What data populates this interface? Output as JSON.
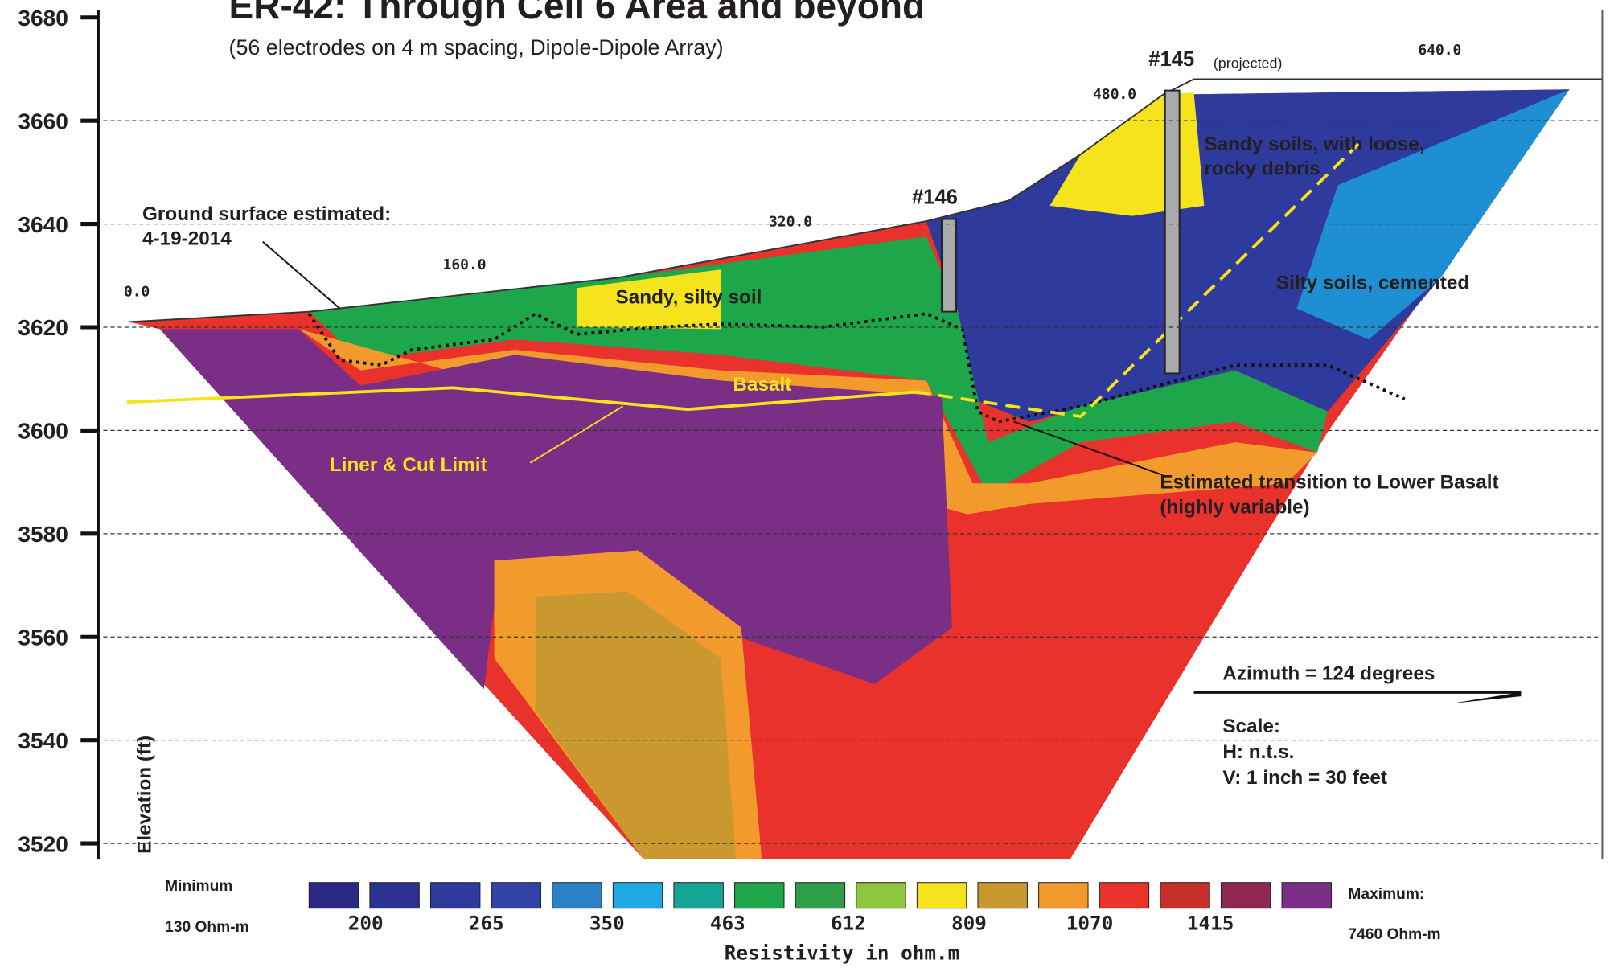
{
  "title": "ER-42: Through Cell 6 Area and beyond",
  "subtitle": "(56 electrodes on 4 m spacing, Dipole-Dipole Array)",
  "y_axis": {
    "label": "Elevation (ft)",
    "ticks": [
      3680,
      3660,
      3640,
      3620,
      3600,
      3580,
      3560,
      3540,
      3520
    ]
  },
  "x_labels": [
    "0.0",
    "160.0",
    "320.0",
    "480.0",
    "640.0"
  ],
  "wells": [
    {
      "label": "#146"
    },
    {
      "label": "#145",
      "note": "(projected)"
    }
  ],
  "annotations": {
    "ground_surface": [
      "Ground surface estimated:",
      "4-19-2014"
    ],
    "sandy_silty": "Sandy, silty soil",
    "basalt": "Basalt",
    "liner": "Liner & Cut Limit",
    "sandy_soils": [
      "Sandy soils, with loose,",
      "rocky debris"
    ],
    "silty_soils": "Silty soils, cemented",
    "transition": [
      "Estimated transition to Lower Basalt",
      "(highly variable)"
    ],
    "azimuth": "Azimuth = 124 degrees",
    "scale": [
      "Scale:",
      "H: n.t.s.",
      "V: 1 inch = 30 feet"
    ]
  },
  "legend": {
    "min_title": "Minimum",
    "min_value": "130 Ohm-m",
    "max_title": "Maximum:",
    "max_value": "7460 Ohm-m",
    "labels": [
      "200",
      "265",
      "350",
      "463",
      "612",
      "809",
      "1070",
      "1415"
    ],
    "axis_title": "Resistivity in ohm.m",
    "colors": [
      "#2a2a86",
      "#2c3290",
      "#2e3a9c",
      "#3142a8",
      "#2b80c8",
      "#1fa9e1",
      "#14a597",
      "#1ea64a",
      "#2f9e48",
      "#8dc63f",
      "#f5e31c",
      "#c9992f",
      "#f39a2c",
      "#e8322b",
      "#c72f2a",
      "#8e2753",
      "#7a2e86"
    ]
  }
}
